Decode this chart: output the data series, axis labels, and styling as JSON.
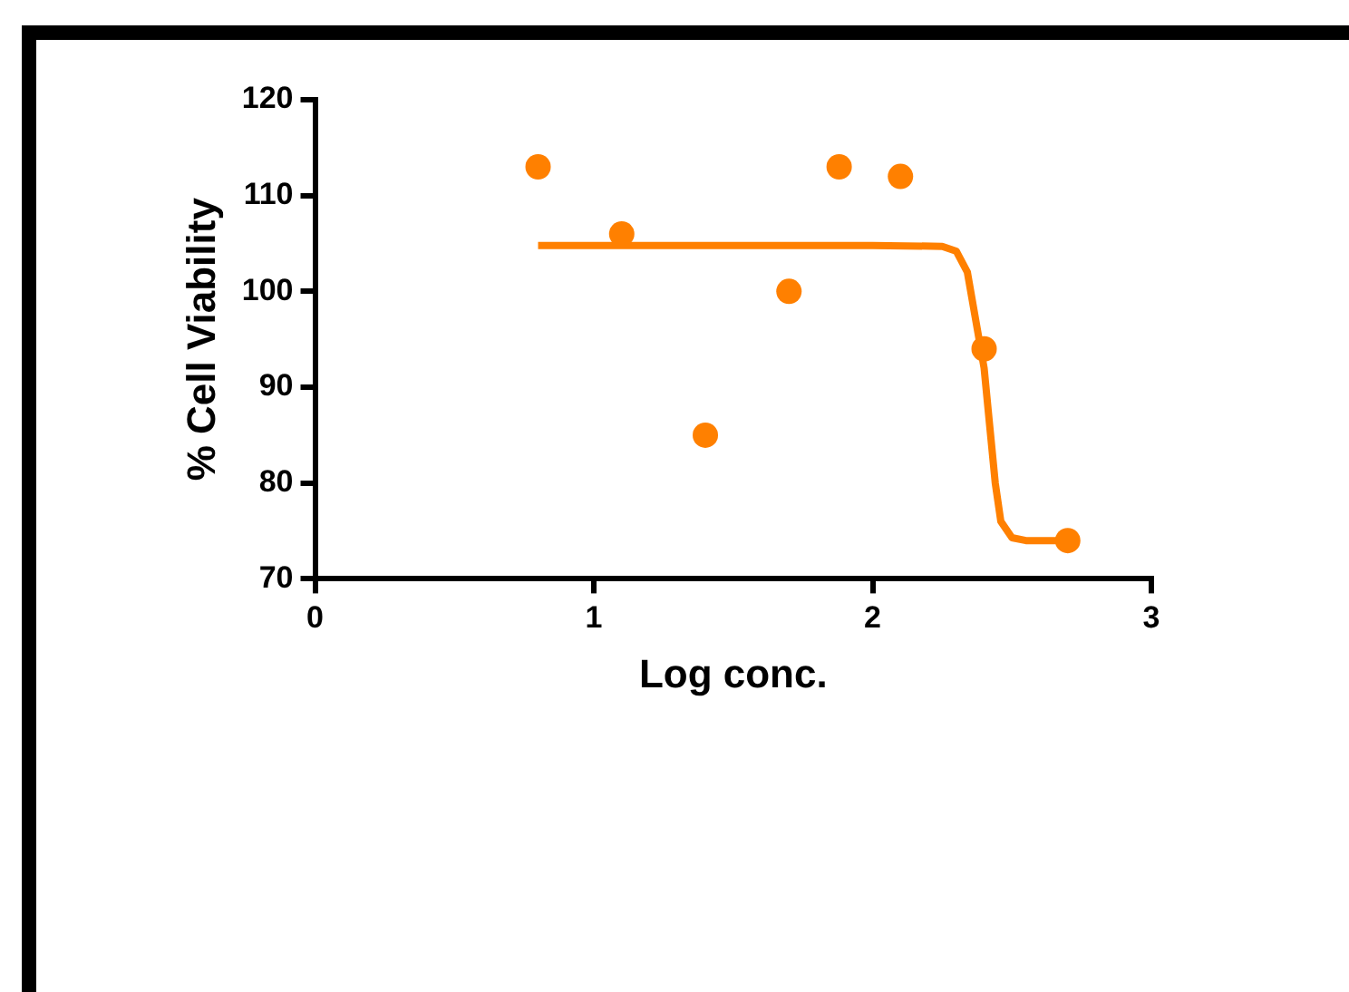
{
  "chart_data": {
    "type": "scatter",
    "xlabel": "Log conc.",
    "ylabel": "% Cell Viability",
    "xlim": [
      0,
      3
    ],
    "xticks": [
      0,
      1,
      2,
      3
    ],
    "ylim": [
      70,
      120
    ],
    "yticks": [
      70,
      80,
      90,
      100,
      110,
      120
    ],
    "grid": false,
    "legend": false,
    "series": [
      {
        "marker": "circle",
        "color": "#ff8000",
        "x": [
          0.8,
          1.1,
          1.4,
          1.7,
          1.88,
          2.1,
          2.4,
          2.7
        ],
        "values": [
          113,
          106,
          85,
          100,
          113,
          112,
          94,
          74
        ]
      },
      {
        "type": "line",
        "marker": "none",
        "line_style": "solid",
        "color": "#ff8000",
        "x": [
          0.8,
          2.0,
          2.25,
          2.3,
          2.34,
          2.37,
          2.4,
          2.42,
          2.44,
          2.46,
          2.5,
          2.55,
          2.73
        ],
        "values": [
          104.8,
          104.8,
          104.7,
          104.2,
          102,
          97,
          92,
          86,
          80,
          76,
          74.3,
          74,
          74
        ]
      }
    ]
  }
}
